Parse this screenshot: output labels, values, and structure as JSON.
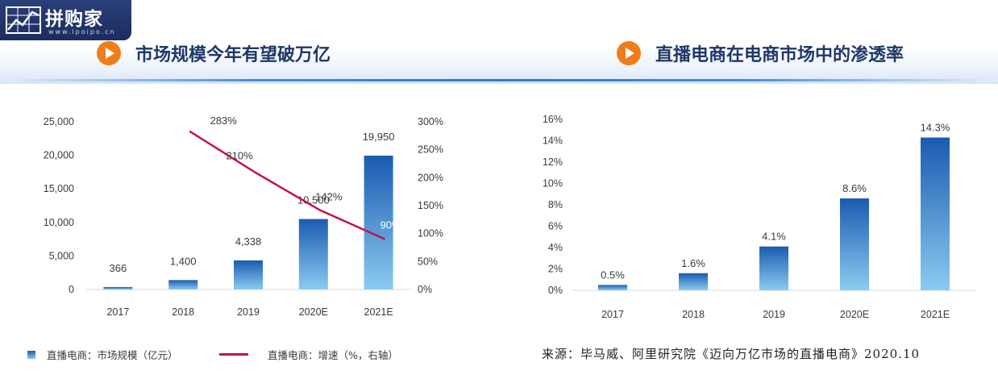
{
  "logo": {
    "text": "拼购家",
    "sub": "www.ipoipo.cn"
  },
  "left_title": "市场规模今年有望破万亿",
  "right_title": "直播电商在电商市场中的渗透率",
  "legend": {
    "bar_label": "直播电商：市场规模（亿元）",
    "line_label": "直播电商：增速（%，右轴）"
  },
  "source": "来源：毕马威、阿里研究院《迈向万亿市场的直播电商》2020.10",
  "colors": {
    "bar_top": "#1a5bb0",
    "bar_bottom": "#8ccbf0",
    "line": "#c0134f",
    "title": "#1f3769",
    "play_icon": "#f07d1a"
  },
  "chart_data": [
    {
      "type": "bar+line",
      "title": "市场规模今年有望破万亿",
      "categories": [
        "2017",
        "2018",
        "2019",
        "2020E",
        "2021E"
      ],
      "series": [
        {
          "name": "直播电商：市场规模（亿元）",
          "type": "bar",
          "axis": "left",
          "values": [
            366,
            1400,
            4338,
            10500,
            19950
          ],
          "labels": [
            "366",
            "1,400",
            "4,338",
            "10,500",
            "19,950"
          ]
        },
        {
          "name": "直播电商：增速（%，右轴）",
          "type": "line",
          "axis": "right",
          "values": [
            null,
            283,
            210,
            142,
            90
          ],
          "labels": [
            "",
            "283%",
            "210%",
            "142%",
            "90%"
          ]
        }
      ],
      "ylim_left": [
        0,
        25000
      ],
      "yticks_left": [
        "0",
        "5,000",
        "10,000",
        "15,000",
        "20,000",
        "25,000"
      ],
      "ylim_right": [
        0,
        300
      ],
      "yticks_right": [
        "0%",
        "50%",
        "100%",
        "150%",
        "200%",
        "250%",
        "300%"
      ],
      "grid": false,
      "legend": "bottom"
    },
    {
      "type": "bar",
      "title": "直播电商在电商市场中的渗透率",
      "categories": [
        "2017",
        "2018",
        "2019",
        "2020E",
        "2021E"
      ],
      "values": [
        0.5,
        1.6,
        4.1,
        8.6,
        14.3
      ],
      "labels": [
        "0.5%",
        "1.6%",
        "4.1%",
        "8.6%",
        "14.3%"
      ],
      "ylim": [
        0,
        16
      ],
      "yticks": [
        "0%",
        "2%",
        "4%",
        "6%",
        "8%",
        "10%",
        "12%",
        "14%",
        "16%"
      ],
      "grid": false
    }
  ]
}
